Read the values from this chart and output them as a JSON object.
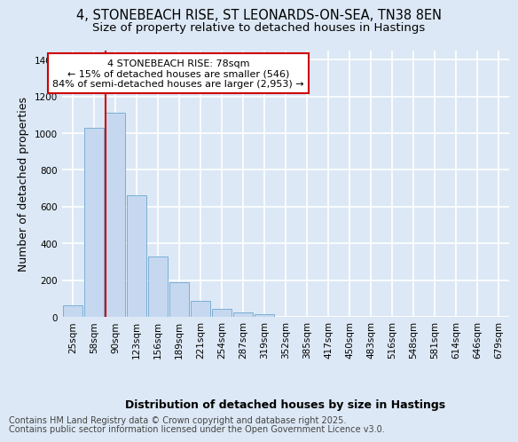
{
  "title_line1": "4, STONEBEACH RISE, ST LEONARDS-ON-SEA, TN38 8EN",
  "title_line2": "Size of property relative to detached houses in Hastings",
  "xlabel": "Distribution of detached houses by size in Hastings",
  "ylabel": "Number of detached properties",
  "categories": [
    "25sqm",
    "58sqm",
    "90sqm",
    "123sqm",
    "156sqm",
    "189sqm",
    "221sqm",
    "254sqm",
    "287sqm",
    "319sqm",
    "352sqm",
    "385sqm",
    "417sqm",
    "450sqm",
    "483sqm",
    "516sqm",
    "548sqm",
    "581sqm",
    "614sqm",
    "646sqm",
    "679sqm"
  ],
  "values": [
    65,
    1030,
    1110,
    660,
    330,
    190,
    85,
    45,
    25,
    15,
    0,
    0,
    0,
    0,
    0,
    0,
    0,
    0,
    0,
    0,
    0
  ],
  "bar_color": "#c5d8f0",
  "bar_edge_color": "#7bafd4",
  "annotation_text": "4 STONEBEACH RISE: 78sqm\n← 15% of detached houses are smaller (546)\n84% of semi-detached houses are larger (2,953) →",
  "annotation_box_color": "#ffffff",
  "annotation_box_edge": "#cc0000",
  "ylim": [
    0,
    1450
  ],
  "yticks": [
    0,
    200,
    400,
    600,
    800,
    1000,
    1200,
    1400
  ],
  "footer_line1": "Contains HM Land Registry data © Crown copyright and database right 2025.",
  "footer_line2": "Contains public sector information licensed under the Open Government Licence v3.0.",
  "bg_color": "#dce8f5",
  "plot_bg_color": "#dce8f5",
  "grid_color": "#ffffff",
  "title_fontsize": 10.5,
  "subtitle_fontsize": 9.5,
  "axis_label_fontsize": 9,
  "tick_fontsize": 7.5,
  "footer_fontsize": 7,
  "red_line_index": 2
}
